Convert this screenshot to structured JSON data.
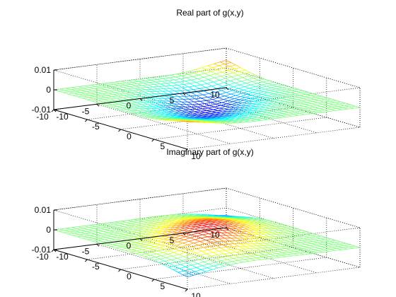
{
  "chart_data": [
    {
      "type": "surface-mesh",
      "title": "Real part of g(x,y)",
      "xlabel": "",
      "ylabel": "",
      "zlabel": "",
      "x_range": [
        -10,
        10
      ],
      "y_range": [
        -10,
        10
      ],
      "z_range": [
        -0.01,
        0.01
      ],
      "x_ticks": [
        "-10",
        "-5",
        "0",
        "5",
        "10"
      ],
      "y_ticks": [
        "-10",
        "-5",
        "0",
        "5",
        "10"
      ],
      "z_ticks": [
        "-0.01",
        "0",
        "0.01"
      ],
      "grid": true,
      "colormap": "jet",
      "surface": {
        "kind": "ridge",
        "amplitude": 0.006,
        "width": 3.0,
        "sign": -1
      }
    },
    {
      "type": "surface-mesh",
      "title": "Imaginary part of g(x,y)",
      "xlabel": "",
      "ylabel": "",
      "zlabel": "",
      "x_range": [
        -10,
        10
      ],
      "y_range": [
        -10,
        10
      ],
      "z_range": [
        -0.01,
        0.01
      ],
      "x_ticks": [
        "-10",
        "-5",
        "0",
        "5",
        "10"
      ],
      "y_ticks": [
        "-10",
        "-5",
        "0",
        "5",
        "10"
      ],
      "z_ticks": [
        "-0.01",
        "0",
        "0.01"
      ],
      "grid": true,
      "colormap": "jet",
      "surface": {
        "kind": "ridge",
        "amplitude": 0.006,
        "width": 3.0,
        "sign": 1
      }
    }
  ]
}
